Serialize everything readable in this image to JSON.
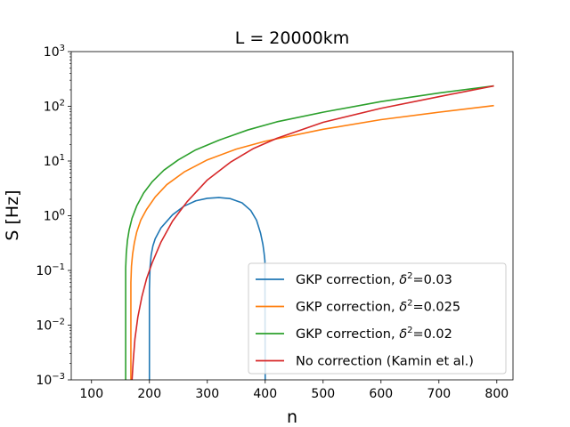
{
  "chart_data": {
    "type": "line",
    "title": "L = 20000km",
    "xlabel": "n",
    "ylabel": "S [Hz]",
    "xlim": [
      65,
      828
    ],
    "ylim_log10": [
      -3,
      3
    ],
    "x_ticks": [
      {
        "value": 100,
        "label": "100"
      },
      {
        "value": 200,
        "label": "200"
      },
      {
        "value": 300,
        "label": "300"
      },
      {
        "value": 400,
        "label": "400"
      },
      {
        "value": 500,
        "label": "500"
      },
      {
        "value": 600,
        "label": "600"
      },
      {
        "value": 700,
        "label": "700"
      },
      {
        "value": 800,
        "label": "800"
      }
    ],
    "y_ticks": [
      {
        "exp": -3,
        "base": "10",
        "sup": "−3"
      },
      {
        "exp": -2,
        "base": "10",
        "sup": "−2"
      },
      {
        "exp": -1,
        "base": "10",
        "sup": "−1"
      },
      {
        "exp": 0,
        "base": "10",
        "sup": "0"
      },
      {
        "exp": 1,
        "base": "10",
        "sup": "1"
      },
      {
        "exp": 2,
        "base": "10",
        "sup": "2"
      },
      {
        "exp": 3,
        "base": "10",
        "sup": "3"
      }
    ],
    "legend_position": "lower-right",
    "series": [
      {
        "name": "GKP correction, δ²=0.03",
        "legend_prefix": "GKP correction, ",
        "legend_delta": "δ",
        "legend_sup": "2",
        "legend_suffix": "=0.03",
        "color": "#1f77b4",
        "x": [
          200,
          200,
          201,
          203,
          206,
          210,
          220,
          240,
          260,
          280,
          300,
          320,
          340,
          360,
          375,
          385,
          392,
          396,
          398,
          399.5,
          400
        ],
        "y": [
          0.001,
          0.045,
          0.11,
          0.19,
          0.28,
          0.38,
          0.6,
          1.04,
          1.5,
          1.87,
          2.08,
          2.15,
          2.05,
          1.72,
          1.25,
          0.83,
          0.48,
          0.3,
          0.21,
          0.15,
          0.001
        ]
      },
      {
        "name": "GKP correction, δ²=0.025",
        "legend_prefix": "GKP correction, ",
        "legend_delta": "δ",
        "legend_sup": "2",
        "legend_suffix": "=0.025",
        "color": "#ff7f0e",
        "x": [
          168,
          168,
          169,
          171,
          174,
          178,
          185,
          195,
          210,
          230,
          260,
          300,
          350,
          400,
          500,
          600,
          700,
          795
        ],
        "y": [
          0.001,
          0.06,
          0.12,
          0.2,
          0.32,
          0.5,
          0.83,
          1.3,
          2.2,
          3.7,
          6.3,
          10.5,
          16.5,
          23,
          38,
          57,
          78,
          103
        ]
      },
      {
        "name": "GKP correction, δ²=0.02",
        "legend_prefix": "GKP correction, ",
        "legend_delta": "δ",
        "legend_sup": "2",
        "legend_suffix": "=0.02",
        "color": "#2ca02c",
        "x": [
          159,
          159,
          160,
          162,
          165,
          170,
          178,
          190,
          205,
          225,
          250,
          280,
          320,
          370,
          420,
          500,
          600,
          700,
          795
        ],
        "y": [
          0.001,
          0.11,
          0.2,
          0.35,
          0.55,
          0.9,
          1.5,
          2.6,
          4.2,
          6.8,
          10.5,
          16,
          24,
          37,
          52,
          78,
          122,
          175,
          236
        ]
      },
      {
        "name": "No correction (Kamin et al.)",
        "legend_prefix": "No correction (Kamin et al.)",
        "legend_delta": "",
        "legend_sup": "",
        "legend_suffix": "",
        "color": "#d62728",
        "x": [
          170,
          172,
          175,
          180,
          187,
          195,
          205,
          220,
          240,
          265,
          300,
          340,
          380,
          420,
          500,
          600,
          700,
          795
        ],
        "y": [
          0.001,
          0.0022,
          0.0056,
          0.014,
          0.033,
          0.07,
          0.14,
          0.33,
          0.8,
          1.8,
          4.5,
          9.5,
          17,
          26,
          51,
          92,
          150,
          236
        ]
      }
    ]
  }
}
